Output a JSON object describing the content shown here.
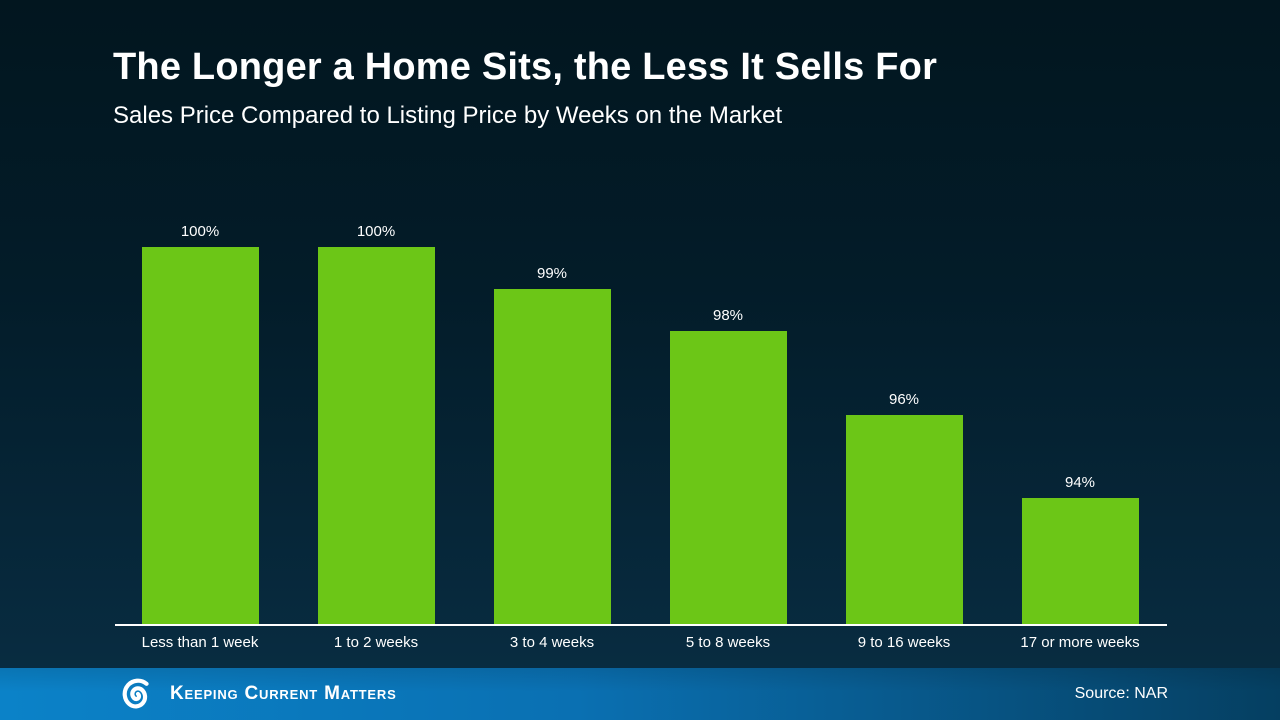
{
  "slide": {
    "title": "The Longer a Home Sits, the Less It Sells For",
    "subtitle": "Sales Price Compared to Listing Price by Weeks on the Market",
    "background_top": "#02161f",
    "background_bottom": "#082c41"
  },
  "chart_data": {
    "type": "bar",
    "title": "The Longer a Home Sits, the Less It Sells For",
    "subtitle": "Sales Price Compared to Listing Price by Weeks on the Market",
    "categories": [
      "Less than 1 week",
      "1 to 2 weeks",
      "3 to 4 weeks",
      "5 to 8 weeks",
      "9 to 16 weeks",
      "17 or more weeks"
    ],
    "values": [
      100,
      100,
      99,
      98,
      96,
      94
    ],
    "value_labels": [
      "100%",
      "100%",
      "99%",
      "98%",
      "96%",
      "94%"
    ],
    "xlabel": "",
    "ylabel": "",
    "ylim": [
      91,
      100
    ],
    "grid": false,
    "legend": "none",
    "bar_color": "#6cc617",
    "value_label_color": "#ffffff",
    "axis_line_color": "#ffffff"
  },
  "footer": {
    "brand_name": "Keeping Current Matters",
    "source_label": "Source: NAR",
    "gradient_left": "#0b82c8",
    "gradient_right": "#053f61"
  }
}
